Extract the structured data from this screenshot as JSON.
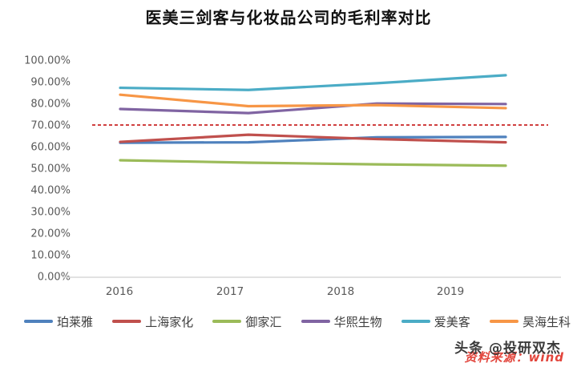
{
  "title": "医美三剑客与化妆品公司的毛利率对比",
  "watermark": {
    "channel": "头条 @投研双杰",
    "source": "资料来源：wind"
  },
  "chart_data": {
    "type": "line",
    "title": "医美三剑客与化妆品公司的毛利率对比",
    "categories": [
      "2016",
      "2017",
      "2018",
      "2019"
    ],
    "y_ticks": [
      "0.00%",
      "10.00%",
      "20.00%",
      "30.00%",
      "40.00%",
      "50.00%",
      "60.00%",
      "70.00%",
      "80.00%",
      "90.00%",
      "100.00%"
    ],
    "ylim": [
      0,
      100
    ],
    "grid": false,
    "legend_position": "bottom",
    "axis_color": "#d9d9d9",
    "tick_color": "#595959",
    "series": [
      {
        "name": "珀莱雅",
        "color": "#4F81BD",
        "values": [
          61.8,
          62.0,
          64.3,
          64.5
        ]
      },
      {
        "name": "上海家化",
        "color": "#C0504D",
        "values": [
          62.2,
          65.5,
          63.5,
          62.0
        ]
      },
      {
        "name": "御家汇",
        "color": "#9BBB59",
        "values": [
          53.7,
          52.6,
          51.8,
          51.2
        ]
      },
      {
        "name": "华熙生物",
        "color": "#8064A2",
        "values": [
          77.4,
          75.5,
          79.9,
          79.7
        ]
      },
      {
        "name": "爱美客",
        "color": "#4BACC6",
        "values": [
          87.2,
          86.2,
          89.3,
          93.0
        ]
      },
      {
        "name": "昊海生科",
        "color": "#F79646",
        "values": [
          84.0,
          78.7,
          79.2,
          77.8
        ]
      }
    ],
    "reference_line": {
      "value": 70,
      "color": "#C00000",
      "style": "dashed"
    }
  }
}
